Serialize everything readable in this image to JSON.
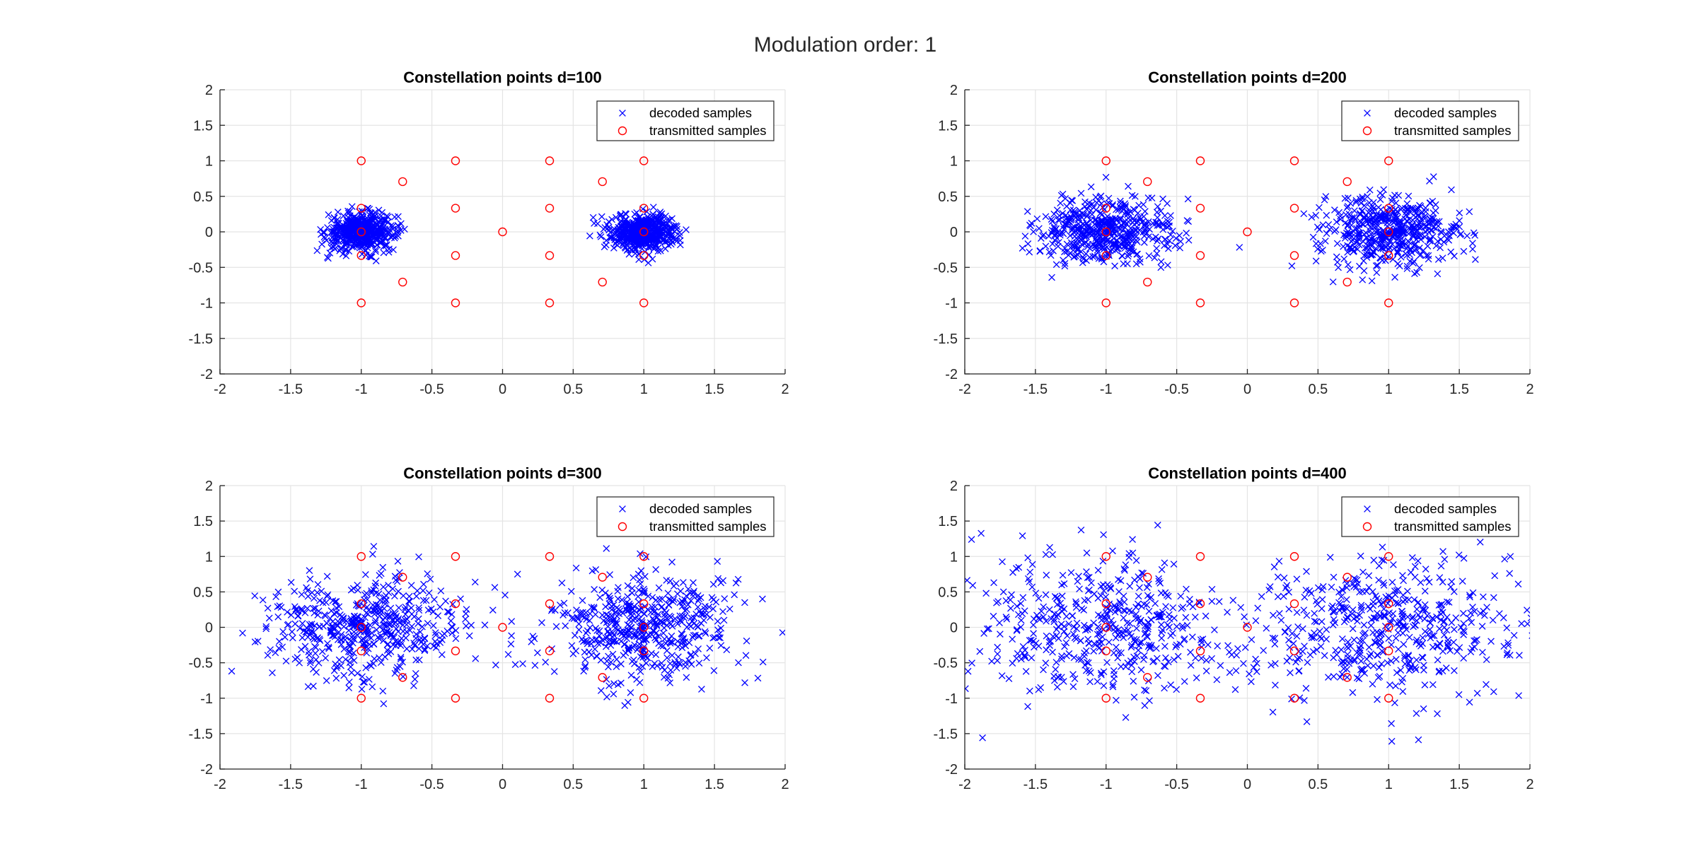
{
  "figure": {
    "title": "Modulation order: 1",
    "colors": {
      "decoded": "#0000ff",
      "transmitted": "#ff0000",
      "grid": "#e4e4e4",
      "axes": "#262626"
    }
  },
  "chart_data": [
    {
      "type": "scatter",
      "title": "Constellation points d=100",
      "xlim": [
        -2,
        2
      ],
      "ylim": [
        -2,
        2
      ],
      "xticks": [
        "-2",
        "-1.5",
        "-1",
        "-0.5",
        "0",
        "0.5",
        "1",
        "1.5",
        "2"
      ],
      "yticks": [
        "2",
        "1.5",
        "1",
        "0.5",
        "0",
        "-0.5",
        "-1",
        "-1.5",
        "-2"
      ],
      "grid": true,
      "legend_position": "top-right",
      "series": [
        {
          "name": "decoded samples",
          "marker": "x",
          "color": "#0000ff",
          "clusters": [
            {
              "center": [
                -1,
                0
              ],
              "spread_x": 0.12,
              "spread_y": 0.13,
              "count": 500
            },
            {
              "center": [
                1,
                0
              ],
              "spread_x": 0.12,
              "spread_y": 0.13,
              "count": 500
            }
          ]
        },
        {
          "name": "transmitted samples",
          "marker": "o",
          "color": "#ff0000"
        }
      ]
    },
    {
      "type": "scatter",
      "title": "Constellation points d=200",
      "xlim": [
        -2,
        2
      ],
      "ylim": [
        -2,
        2
      ],
      "xticks": [
        "-2",
        "-1.5",
        "-1",
        "-0.5",
        "0",
        "0.5",
        "1",
        "1.5",
        "2"
      ],
      "yticks": [
        "2",
        "1.5",
        "1",
        "0.5",
        "0",
        "-0.5",
        "-1",
        "-1.5",
        "-2"
      ],
      "grid": true,
      "legend_position": "top-right",
      "series": [
        {
          "name": "decoded samples",
          "marker": "x",
          "color": "#0000ff",
          "clusters": [
            {
              "center": [
                -1,
                0
              ],
              "spread_x": 0.24,
              "spread_y": 0.24,
              "count": 500
            },
            {
              "center": [
                1,
                0
              ],
              "spread_x": 0.24,
              "spread_y": 0.24,
              "count": 500
            }
          ]
        },
        {
          "name": "transmitted samples",
          "marker": "o",
          "color": "#ff0000"
        }
      ]
    },
    {
      "type": "scatter",
      "title": "Constellation points d=300",
      "xlim": [
        -2,
        2
      ],
      "ylim": [
        -2,
        2
      ],
      "xticks": [
        "-2",
        "-1.5",
        "-1",
        "-0.5",
        "0",
        "0.5",
        "1",
        "1.5",
        "2"
      ],
      "yticks": [
        "2",
        "1.5",
        "1",
        "0.5",
        "0",
        "-0.5",
        "-1",
        "-1.5",
        "-2"
      ],
      "grid": true,
      "legend_position": "top-right",
      "series": [
        {
          "name": "decoded samples",
          "marker": "x",
          "color": "#0000ff",
          "clusters": [
            {
              "center": [
                -1,
                0
              ],
              "spread_x": 0.36,
              "spread_y": 0.38,
              "count": 500
            },
            {
              "center": [
                1,
                0
              ],
              "spread_x": 0.36,
              "spread_y": 0.38,
              "count": 500
            }
          ]
        },
        {
          "name": "transmitted samples",
          "marker": "o",
          "color": "#ff0000"
        }
      ]
    },
    {
      "type": "scatter",
      "title": "Constellation points d=400",
      "xlim": [
        -2,
        2
      ],
      "ylim": [
        -2,
        2
      ],
      "xticks": [
        "-2",
        "-1.5",
        "-1",
        "-0.5",
        "0",
        "0.5",
        "1",
        "1.5",
        "2"
      ],
      "yticks": [
        "2",
        "1.5",
        "1",
        "0.5",
        "0",
        "-0.5",
        "-1",
        "-1.5",
        "-2"
      ],
      "grid": true,
      "legend_position": "top-right",
      "series": [
        {
          "name": "decoded samples",
          "marker": "x",
          "color": "#0000ff",
          "clusters": [
            {
              "center": [
                -1,
                0
              ],
              "spread_x": 0.48,
              "spread_y": 0.5,
              "count": 500
            },
            {
              "center": [
                1,
                0
              ],
              "spread_x": 0.48,
              "spread_y": 0.5,
              "count": 500
            }
          ]
        },
        {
          "name": "transmitted samples",
          "marker": "o",
          "color": "#ff0000"
        }
      ]
    }
  ],
  "transmitted_points": [
    [
      -1,
      1
    ],
    [
      -0.333,
      1
    ],
    [
      0.333,
      1
    ],
    [
      1,
      1
    ],
    [
      -0.707,
      0.707
    ],
    [
      0.707,
      0.707
    ],
    [
      -1,
      0.333
    ],
    [
      -0.333,
      0.333
    ],
    [
      0.333,
      0.333
    ],
    [
      1,
      0.333
    ],
    [
      -1,
      0
    ],
    [
      0,
      0
    ],
    [
      1,
      0
    ],
    [
      -1,
      -0.333
    ],
    [
      -0.333,
      -0.333
    ],
    [
      0.333,
      -0.333
    ],
    [
      1,
      -0.333
    ],
    [
      -0.707,
      -0.707
    ],
    [
      0.707,
      -0.707
    ],
    [
      -1,
      -1
    ],
    [
      -0.333,
      -1
    ],
    [
      0.333,
      -1
    ],
    [
      1,
      -1
    ]
  ]
}
